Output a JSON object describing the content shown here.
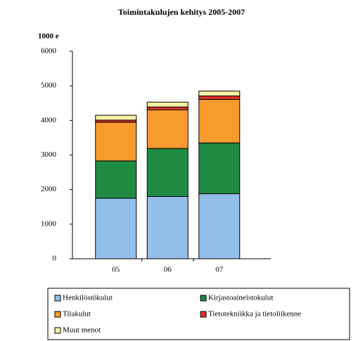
{
  "chart_data": {
    "type": "stacked_bar",
    "title": "Toimintakulujen kehitys 2005-2007",
    "y_label": "1000 e",
    "categories": [
      "05",
      "06",
      "07"
    ],
    "series": [
      {
        "name": "Henkilöstökulut",
        "color": "#93c0ea",
        "values": [
          1750,
          1800,
          1880
        ]
      },
      {
        "name": "Kirjastoaineistokulut",
        "color": "#1f8a42",
        "values": [
          1080,
          1390,
          1470
        ]
      },
      {
        "name": "Tilakulut",
        "color": "#f89a2c",
        "values": [
          1120,
          1120,
          1260
        ]
      },
      {
        "name": "Tietotekniikka ja tietoliikenne",
        "color": "#e2322a",
        "values": [
          60,
          80,
          100
        ]
      },
      {
        "name": "Muut menot",
        "color": "#f8f2a4",
        "values": [
          140,
          140,
          140
        ]
      }
    ],
    "ylim": [
      0,
      6000
    ],
    "yticks": [
      0,
      1000,
      2000,
      3000,
      4000,
      5000,
      6000
    ],
    "grid": false
  }
}
